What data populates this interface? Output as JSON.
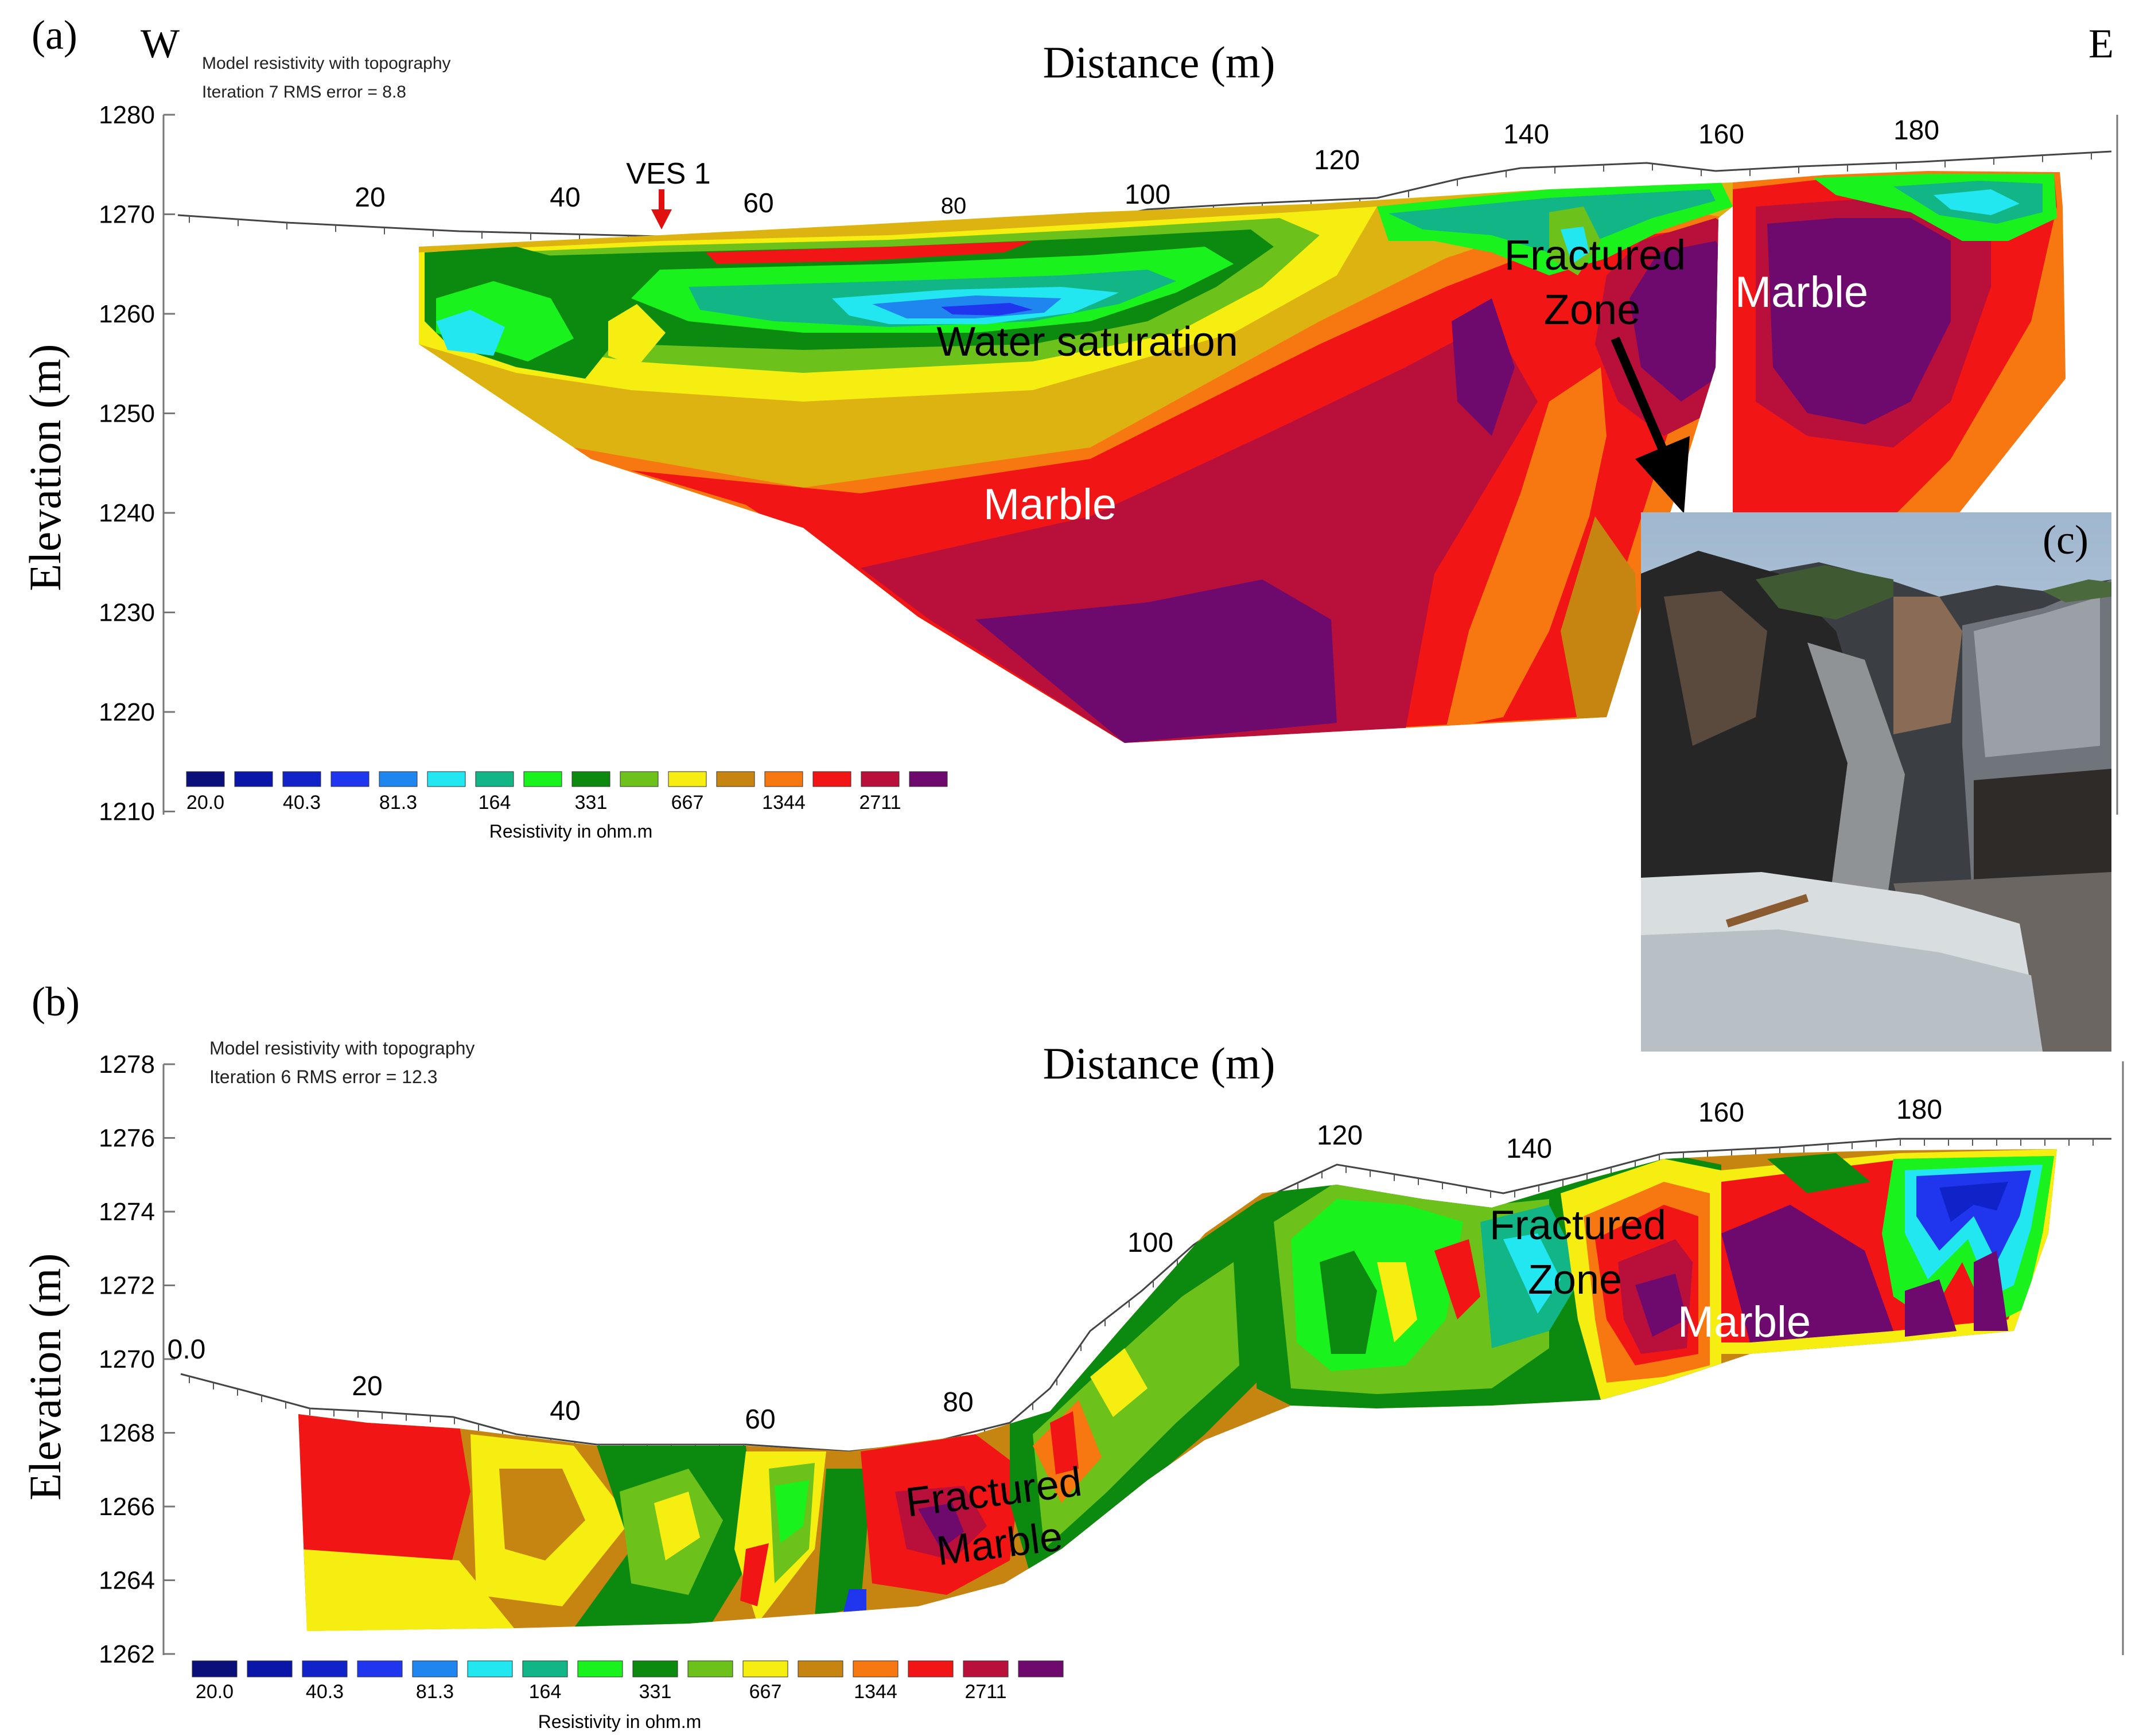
{
  "panel_a": {
    "label": "(a)",
    "west": "W",
    "east": "E",
    "info_line1": "Model resistivity with topography",
    "info_line2": "Iteration 7 RMS error = 8.8",
    "x_axis_title": "Distance (m)",
    "y_axis_title": "Elevation (m)",
    "y_ticks": [
      "1280",
      "1270",
      "1260",
      "1250",
      "1240",
      "1230",
      "1220",
      "1210"
    ],
    "x_ticks": [
      "20",
      "40",
      "60",
      "80",
      "100",
      "120",
      "140",
      "160",
      "180"
    ],
    "ves_label": "VES 1",
    "annotations": {
      "water": "Water saturation",
      "marble_low": "Marble",
      "marble_right": "Marble",
      "fractured": "Fractured",
      "zone": "Zone"
    },
    "legend_labels": [
      "20.0",
      "40.3",
      "81.3",
      "164",
      "331",
      "667",
      "1344",
      "2711"
    ],
    "legend_title": "Resistivity in ohm.m"
  },
  "panel_b": {
    "label": "(b)",
    "info_line1": "Model resistivity with topography",
    "info_line2": "Iteration 6 RMS error = 12.3",
    "x_axis_title": "Distance (m)",
    "y_axis_title": "Elevation (m)",
    "y_ticks": [
      "1278",
      "1276",
      "1274",
      "1272",
      "1270",
      "1268",
      "1266",
      "1264",
      "1262"
    ],
    "x_ticks": [
      "0.0",
      "20",
      "40",
      "60",
      "80",
      "100",
      "120",
      "140",
      "160",
      "180"
    ],
    "annotations": {
      "fractured_marble_1": "Fractured",
      "fractured_marble_2": "Marble",
      "fractured": "Fractured",
      "zone": "Zone",
      "marble": "Marble"
    },
    "legend_labels": [
      "20.0",
      "40.3",
      "81.3",
      "164",
      "331",
      "667",
      "1344",
      "2711"
    ],
    "legend_title": "Resistivity in ohm.m"
  },
  "panel_c": {
    "label": "(c)"
  },
  "colors": {
    "scale": [
      "#0b0f7a",
      "#0a16a8",
      "#0f23c9",
      "#1f36ee",
      "#1f86f0",
      "#22e6f0",
      "#12b585",
      "#19f21d",
      "#0c8a10",
      "#6cc21a",
      "#f6ee10",
      "#c68410",
      "#f77810",
      "#f21515",
      "#b8103a",
      "#6e0a6e"
    ]
  }
}
